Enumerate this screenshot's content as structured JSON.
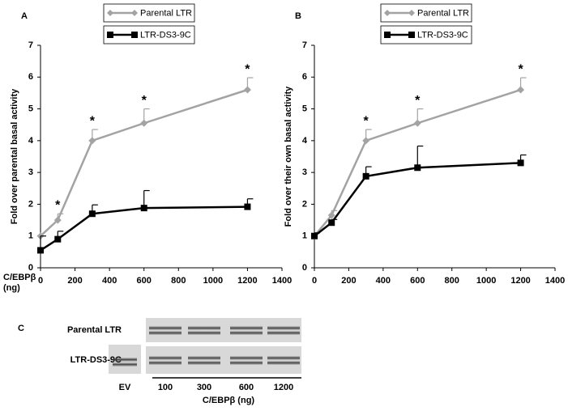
{
  "chart_data": [
    {
      "type": "line",
      "panel": "A",
      "y_label": "Fold over parental basal activity",
      "x_label": [
        "C/EBPβ",
        "(ng)"
      ],
      "x": [
        0,
        100,
        300,
        600,
        1200
      ],
      "series": [
        {
          "name": "Parental LTR",
          "color": "#a3a3a3",
          "marker": "diamond",
          "values": [
            1,
            1.5,
            4.0,
            4.55,
            5.6
          ],
          "errors": [
            0,
            0.2,
            0.35,
            0.45,
            0.38
          ]
        },
        {
          "name": "LTR-DS3-9C",
          "color": "#000000",
          "marker": "square",
          "values": [
            0.55,
            0.9,
            1.7,
            1.88,
            1.92
          ],
          "errors": [
            0.45,
            0.25,
            0.28,
            0.55,
            0.25
          ]
        }
      ],
      "annotations": [
        {
          "x": 100,
          "text": "*"
        },
        {
          "x": 300,
          "text": "*"
        },
        {
          "x": 600,
          "text": "*"
        },
        {
          "x": 1200,
          "text": "*"
        }
      ],
      "xlim": [
        0,
        1400
      ],
      "xticks": [
        0,
        200,
        400,
        600,
        800,
        1000,
        1200,
        1400
      ],
      "ylim": [
        0,
        7
      ],
      "yticks": [
        0,
        1,
        2,
        3,
        4,
        5,
        6,
        7
      ]
    },
    {
      "type": "line",
      "panel": "B",
      "y_label": "Fold over their own basal activity",
      "x": [
        0,
        100,
        300,
        600,
        1200
      ],
      "series": [
        {
          "name": "Parental LTR",
          "color": "#a3a3a3",
          "marker": "diamond",
          "values": [
            1,
            1.65,
            4.0,
            4.55,
            5.6
          ],
          "errors": [
            0,
            0.15,
            0.35,
            0.45,
            0.38
          ]
        },
        {
          "name": "LTR-DS3-9C",
          "color": "#000000",
          "marker": "square",
          "values": [
            1.0,
            1.42,
            2.88,
            3.15,
            3.3
          ],
          "errors": [
            0.1,
            0.1,
            0.3,
            0.68,
            0.25
          ]
        }
      ],
      "annotations": [
        {
          "x": 300,
          "text": "*"
        },
        {
          "x": 600,
          "text": "*"
        },
        {
          "x": 1200,
          "text": "*"
        }
      ],
      "xlim": [
        0,
        1400
      ],
      "xticks": [
        0,
        200,
        400,
        600,
        800,
        1000,
        1200,
        1400
      ],
      "ylim": [
        0,
        7
      ],
      "yticks": [
        0,
        1,
        2,
        3,
        4,
        5,
        6,
        7
      ]
    }
  ],
  "blot": {
    "panel": "C",
    "rows": [
      "Parental LTR",
      "LTR-DS3-9C"
    ],
    "lanes": [
      "EV",
      "100",
      "300",
      "600",
      "1200"
    ],
    "x_label": "C/EBPβ (ng)"
  }
}
